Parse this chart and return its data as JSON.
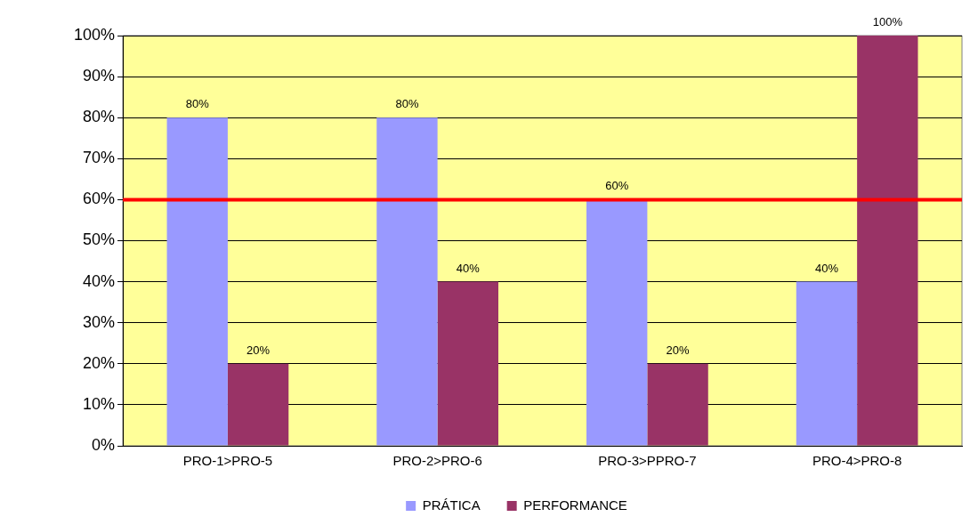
{
  "chart_data": {
    "type": "bar",
    "categories": [
      "PRO-1>PRO-5",
      "PRO-2>PRO-6",
      "PRO-3>PPRO-7",
      "PRO-4>PRO-8"
    ],
    "series": [
      {
        "name": "PRÁTICA",
        "color": "#9999ff",
        "values": [
          80,
          80,
          60,
          40
        ],
        "value_labels": [
          "80%",
          "80%",
          "60%",
          "40%"
        ]
      },
      {
        "name": "PERFORMANCE",
        "color": "#993366",
        "values": [
          20,
          40,
          20,
          100
        ],
        "value_labels": [
          "20%",
          "40%",
          "20%",
          "100%"
        ]
      }
    ],
    "ylim": [
      0,
      100
    ],
    "yticks": [
      {
        "value": 0,
        "label": "0%"
      },
      {
        "value": 10,
        "label": "10%"
      },
      {
        "value": 20,
        "label": "20%"
      },
      {
        "value": 30,
        "label": "30%"
      },
      {
        "value": 40,
        "label": "40%"
      },
      {
        "value": 50,
        "label": "50%"
      },
      {
        "value": 60,
        "label": "60%"
      },
      {
        "value": 70,
        "label": "70%"
      },
      {
        "value": 80,
        "label": "80%"
      },
      {
        "value": 90,
        "label": "90%"
      },
      {
        "value": 100,
        "label": "100%"
      }
    ],
    "ref_lines": [
      {
        "axis": "y",
        "value": 60,
        "color": "#ff0000"
      }
    ],
    "grid": "y",
    "legend": "bottom"
  }
}
